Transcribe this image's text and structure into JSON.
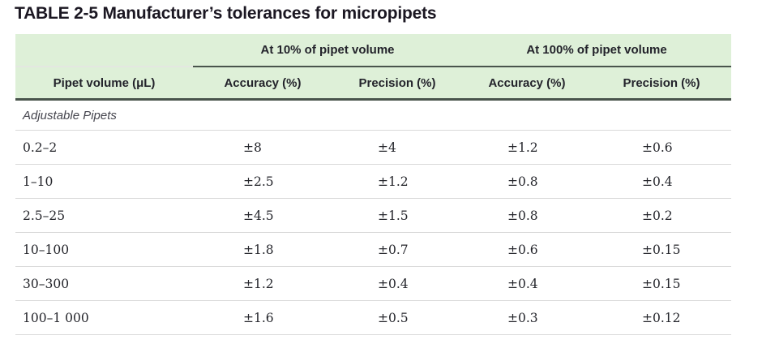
{
  "title": "TABLE 2-5 Manufacturer’s tolerances for micropipets",
  "table": {
    "col_groups": [
      {
        "label": "At 10% of pipet volume"
      },
      {
        "label": "At 100% of pipet volume"
      }
    ],
    "columns": [
      "Pipet volume (μL)",
      "Accuracy (%)",
      "Precision (%)",
      "Accuracy (%)",
      "Precision (%)"
    ],
    "section_label": "Adjustable Pipets",
    "rows": [
      [
        "0.2–2",
        "±8",
        "±4",
        "±1.2",
        "±0.6"
      ],
      [
        "1–10",
        "±2.5",
        "±1.2",
        "±0.8",
        "±0.4"
      ],
      [
        "2.5–25",
        "±4.5",
        "±1.5",
        "±0.8",
        "±0.2"
      ],
      [
        "10–100",
        "±1.8",
        "±0.7",
        "±0.6",
        "±0.15"
      ],
      [
        "30–300",
        "±1.2",
        "±0.4",
        "±0.4",
        "±0.15"
      ],
      [
        "100–1 000",
        "±1.6",
        "±0.5",
        "±0.3",
        "±0.12"
      ]
    ]
  },
  "colors": {
    "header_background": "#def0d8",
    "dark_rule": "#49544c",
    "light_rule": "#d9d9d9",
    "text": "#24252b"
  }
}
